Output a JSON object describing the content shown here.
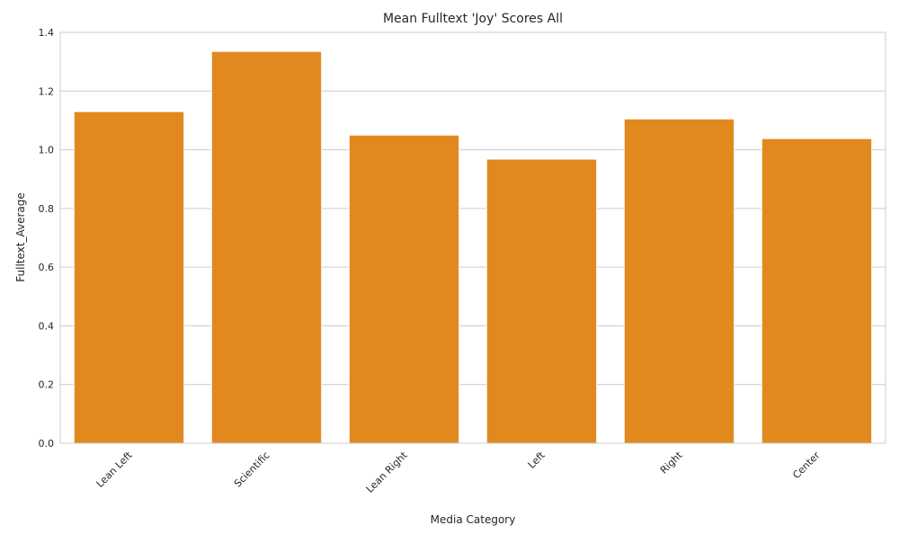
{
  "chart_data": {
    "type": "bar",
    "title": "Mean Fulltext 'Joy' Scores All",
    "xlabel": "Media Category",
    "ylabel": "Fulltext_Average",
    "categories": [
      "Lean Left",
      "Scientific",
      "Lean Right",
      "Left",
      "Right",
      "Center"
    ],
    "values": [
      1.13,
      1.335,
      1.05,
      0.968,
      1.105,
      1.038
    ],
    "ylim": [
      0,
      1.4
    ],
    "yticks": [
      "0.0",
      "0.2",
      "0.4",
      "0.6",
      "0.8",
      "1.0",
      "1.2",
      "1.4"
    ],
    "grid": true,
    "bar_color": "#e1891f",
    "grid_color": "#cccccc"
  }
}
